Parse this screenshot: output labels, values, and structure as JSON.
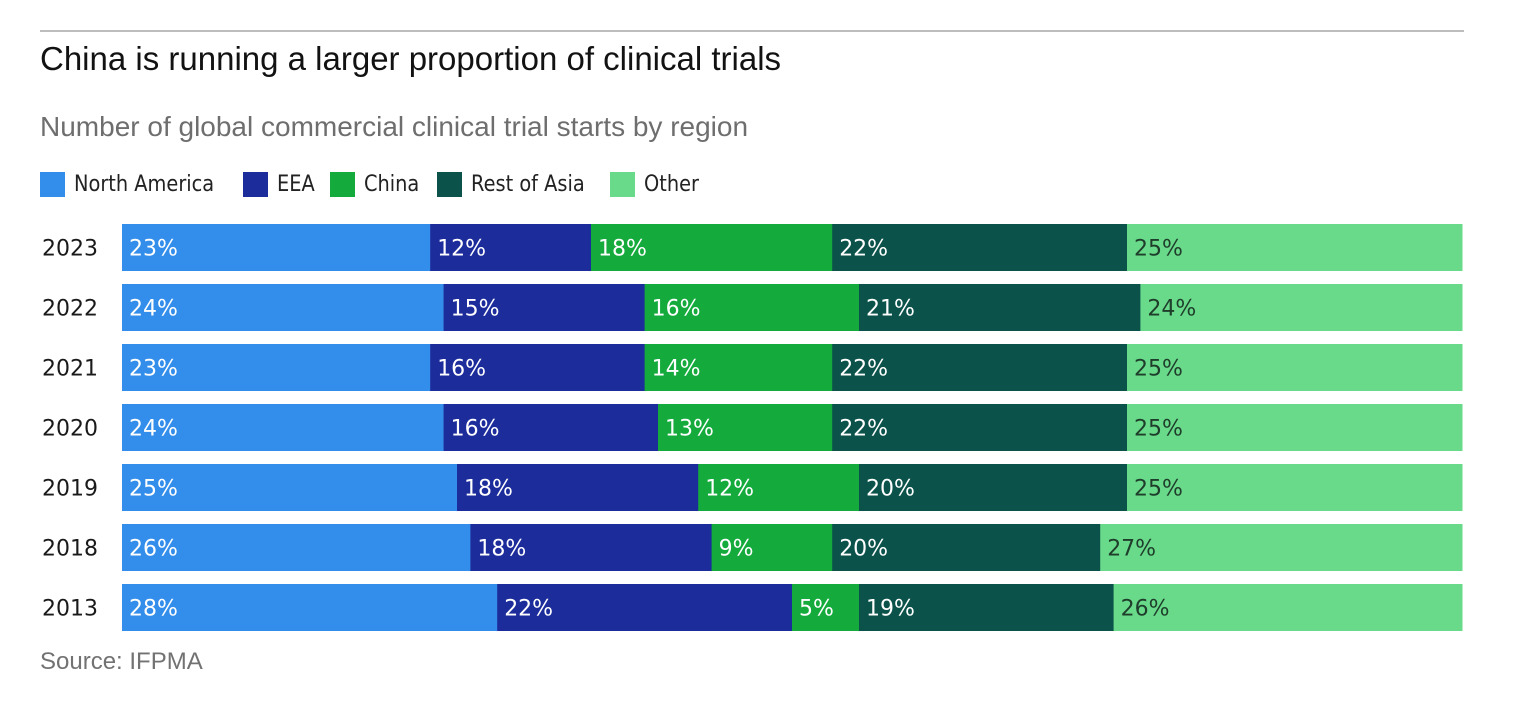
{
  "title": "China is running a larger proportion of clinical trials",
  "subtitle": "Number of global commercial clinical trial starts by region",
  "source": "Source: IFPMA",
  "legend": [
    {
      "label": "North America",
      "color": "#338deb"
    },
    {
      "label": "EEA",
      "color": "#1c2c9b"
    },
    {
      "label": "China",
      "color": "#14aa3c"
    },
    {
      "label": "Rest of Asia",
      "color": "#0b524b"
    },
    {
      "label": "Other",
      "color": "#69d98a"
    }
  ],
  "chart_data": {
    "type": "bar",
    "orientation": "horizontal",
    "stacked": true,
    "title": "China is running a larger proportion of clinical trials",
    "subtitle": "Number of global commercial clinical trial starts by region",
    "unit": "%",
    "categories": [
      "2023",
      "2022",
      "2021",
      "2020",
      "2019",
      "2018",
      "2013"
    ],
    "series": [
      {
        "name": "North America",
        "color": "#338deb",
        "label_color": "#ffffff",
        "values": [
          23,
          24,
          23,
          24,
          25,
          26,
          28
        ]
      },
      {
        "name": "EEA",
        "color": "#1c2c9b",
        "label_color": "#ffffff",
        "values": [
          12,
          15,
          16,
          16,
          18,
          18,
          22
        ]
      },
      {
        "name": "China",
        "color": "#14aa3c",
        "label_color": "#ffffff",
        "values": [
          18,
          16,
          14,
          13,
          12,
          9,
          5
        ]
      },
      {
        "name": "Rest of Asia",
        "color": "#0b524b",
        "label_color": "#ffffff",
        "values": [
          22,
          21,
          22,
          22,
          20,
          20,
          19
        ]
      },
      {
        "name": "Other",
        "color": "#69d98a",
        "label_color": "#1e3d2a",
        "values": [
          25,
          24,
          25,
          25,
          25,
          27,
          26
        ]
      }
    ],
    "legend_position": "top-left",
    "grid": false
  }
}
